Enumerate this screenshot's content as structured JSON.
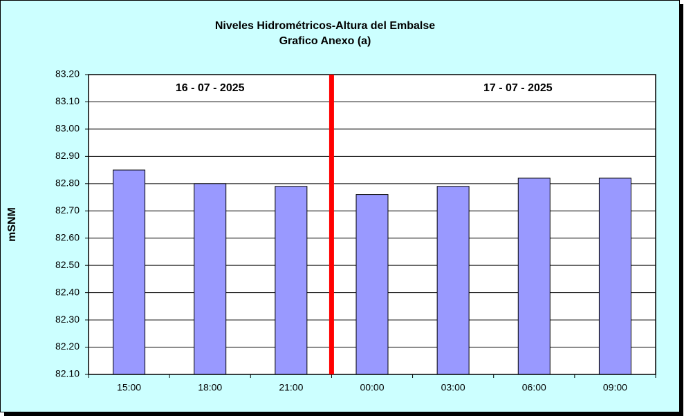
{
  "chart_data": {
    "type": "bar",
    "title": "Niveles Hidrométricos-Altura del Embalse",
    "subtitle": "Grafico Anexo (a)",
    "y_label": "mSNM",
    "annotations": [
      "16 - 07 - 2025",
      "17 - 07 - 2025"
    ],
    "categories": [
      "15:00",
      "18:00",
      "21:00",
      "00:00",
      "03:00",
      "06:00",
      "09:00"
    ],
    "values": [
      82.85,
      82.8,
      82.79,
      82.76,
      82.79,
      82.82,
      82.82
    ],
    "color": "#9999ff",
    "ylim": [
      82.1,
      83.2
    ],
    "yticks": [
      {
        "value": 82.1,
        "label": "82.10"
      },
      {
        "value": 82.2,
        "label": "82.20"
      },
      {
        "value": 82.3,
        "label": "82.30"
      },
      {
        "value": 82.4,
        "label": "82.40"
      },
      {
        "value": 82.5,
        "label": "82.50"
      },
      {
        "value": 82.6,
        "label": "82.60"
      },
      {
        "value": 82.7,
        "label": "82.70"
      },
      {
        "value": 82.8,
        "label": "82.80"
      },
      {
        "value": 82.9,
        "label": "82.90"
      },
      {
        "value": 83.0,
        "label": "83.00"
      },
      {
        "value": 83.1,
        "label": "83.10"
      },
      {
        "value": 83.2,
        "label": "83.20"
      }
    ],
    "grid": true
  }
}
